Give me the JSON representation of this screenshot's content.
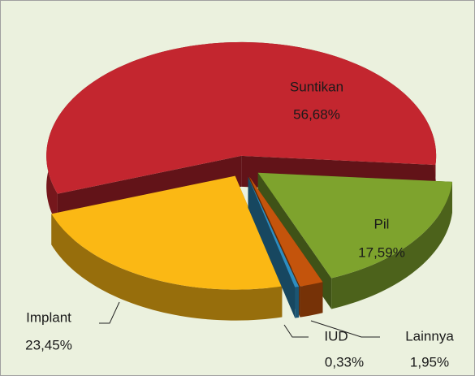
{
  "chart_data": {
    "type": "pie",
    "categories": [
      "Suntikan",
      "Pil",
      "Lainnya",
      "IUD",
      "Implant"
    ],
    "values": [
      56.68,
      17.59,
      1.95,
      0.33,
      23.45
    ],
    "value_labels": [
      "56,68%",
      "17,59%",
      "1,95%",
      "0,33%",
      "23,45%"
    ],
    "colors": [
      "#c3262f",
      "#7ea32d",
      "#c4540c",
      "#2d8dc0",
      "#fbb814"
    ]
  }
}
